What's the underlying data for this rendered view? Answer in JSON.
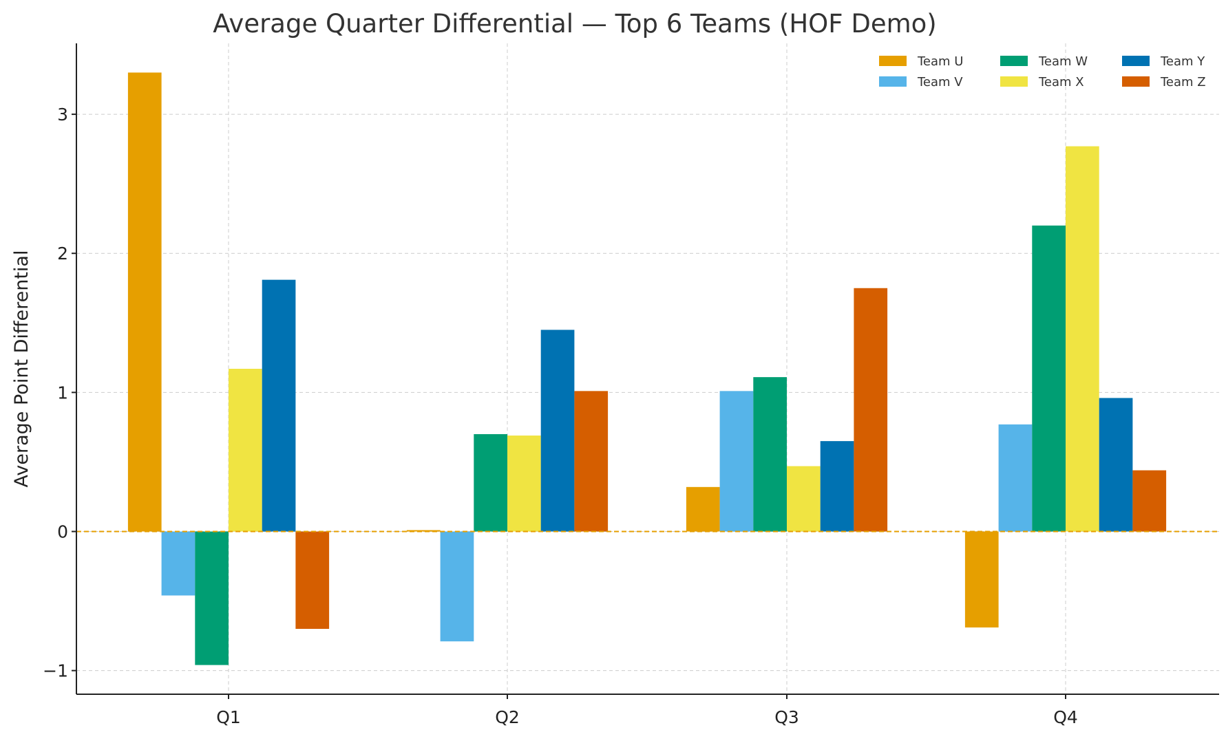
{
  "chart_data": {
    "type": "bar",
    "title": "Average Quarter Differential — Top 6 Teams (HOF Demo)",
    "xlabel": "",
    "ylabel": "Average Point Differential",
    "categories": [
      "Q1",
      "Q2",
      "Q3",
      "Q4"
    ],
    "ylim": [
      -1.17,
      3.51
    ],
    "yticks": [
      -1,
      0,
      1,
      2,
      3
    ],
    "ytick_labels": [
      "−1",
      "0",
      "1",
      "2",
      "3"
    ],
    "grid": true,
    "legend_position": "top-right",
    "reference_line": {
      "y": 0,
      "color": "#E69F00",
      "style": "dashed"
    },
    "series": [
      {
        "name": "Team U",
        "color": "#E69F00",
        "values": [
          3.3,
          0.01,
          0.32,
          -0.69
        ]
      },
      {
        "name": "Team V",
        "color": "#56B4E9",
        "values": [
          -0.46,
          -0.79,
          1.01,
          0.77
        ]
      },
      {
        "name": "Team W",
        "color": "#009E73",
        "values": [
          -0.96,
          0.7,
          1.11,
          2.2
        ]
      },
      {
        "name": "Team X",
        "color": "#F0E442",
        "values": [
          1.17,
          0.69,
          0.47,
          2.77
        ]
      },
      {
        "name": "Team Y",
        "color": "#0072B2",
        "values": [
          1.81,
          1.45,
          0.65,
          0.96
        ]
      },
      {
        "name": "Team Z",
        "color": "#D55E00",
        "values": [
          -0.7,
          1.01,
          1.75,
          0.44
        ]
      }
    ]
  }
}
